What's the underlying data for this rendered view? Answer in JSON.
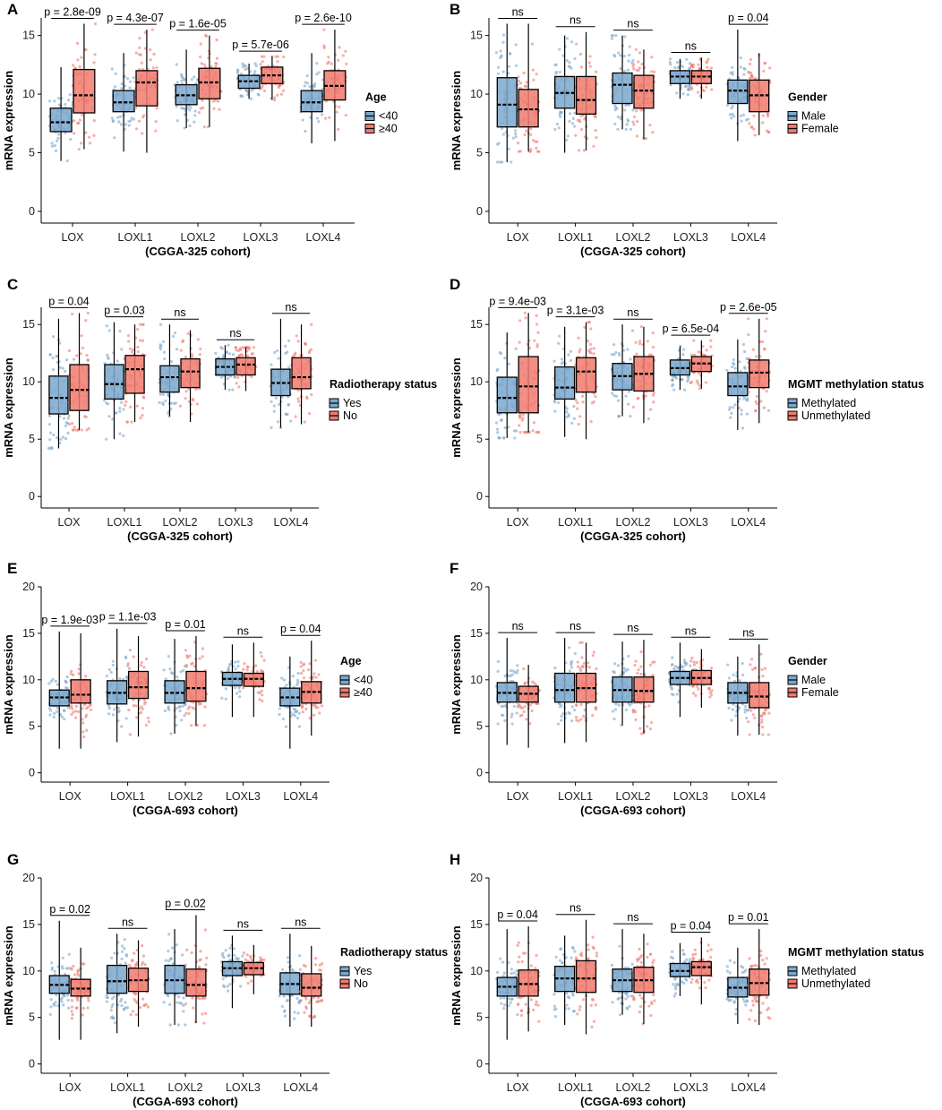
{
  "figure": {
    "colors": {
      "group1": "#7ba7cc",
      "group2": "#f07a6e",
      "median": "#000000"
    },
    "genes": [
      "LOX",
      "LOXL1",
      "LOXL2",
      "LOXL3",
      "LOXL4"
    ],
    "ylabel": "mRNA expression"
  },
  "chart_data": [
    {
      "panel": "A",
      "type": "box",
      "categories": [
        "LOX",
        "LOXL1",
        "LOXL2",
        "LOXL3",
        "LOXL4"
      ],
      "xlabel": "(CGGA-325 cohort)",
      "ylabel": "mRNA expression",
      "ylim": [
        -1,
        16.5
      ],
      "yticks": [
        0,
        5,
        10,
        15
      ],
      "legend": {
        "title": "Age",
        "labels": [
          "<40",
          "≥40"
        ]
      },
      "series": [
        {
          "name": "<40",
          "boxes": [
            [
              6.8,
              7.6,
              8.8
            ],
            [
              8.5,
              9.3,
              10.3
            ],
            [
              9.1,
              9.9,
              10.8
            ],
            [
              10.5,
              11.1,
              11.6
            ],
            [
              8.5,
              9.3,
              10.3
            ]
          ],
          "whiskers": [
            [
              4.3,
              12.3
            ],
            [
              5.1,
              13.5
            ],
            [
              7.1,
              13.8
            ],
            [
              9.6,
              12.6
            ],
            [
              5.8,
              13.5
            ]
          ]
        },
        {
          "name": "≥40",
          "boxes": [
            [
              8.4,
              9.9,
              12.1
            ],
            [
              9.0,
              11.0,
              12.0
            ],
            [
              9.6,
              11.0,
              12.2
            ],
            [
              10.9,
              11.6,
              12.3
            ],
            [
              9.5,
              10.7,
              12.0
            ]
          ],
          "whiskers": [
            [
              5.3,
              16.0
            ],
            [
              5.0,
              15.5
            ],
            [
              7.2,
              15.0
            ],
            [
              9.5,
              13.2
            ],
            [
              6.0,
              15.5
            ]
          ]
        }
      ],
      "annotations": [
        "p = 2.8e-09",
        "p = 4.3e-07",
        "p = 1.6e-05",
        "p = 5.7e-06",
        "p = 2.6e-10"
      ]
    },
    {
      "panel": "B",
      "type": "box",
      "categories": [
        "LOX",
        "LOXL1",
        "LOXL2",
        "LOXL3",
        "LOXL4"
      ],
      "xlabel": "(CGGA-325 cohort)",
      "ylabel": "mRNA expression",
      "ylim": [
        -1,
        16.5
      ],
      "yticks": [
        0,
        5,
        10,
        15
      ],
      "legend": {
        "title": "Gender",
        "labels": [
          "Male",
          "Female"
        ]
      },
      "series": [
        {
          "name": "Male",
          "boxes": [
            [
              7.2,
              9.1,
              11.4
            ],
            [
              8.8,
              10.1,
              11.5
            ],
            [
              9.2,
              10.8,
              11.8
            ],
            [
              10.9,
              11.5,
              12.0
            ],
            [
              9.2,
              10.3,
              11.2
            ]
          ],
          "whiskers": [
            [
              4.2,
              16.0
            ],
            [
              5.0,
              15.0
            ],
            [
              7.0,
              15.0
            ],
            [
              9.6,
              13.0
            ],
            [
              6.0,
              15.5
            ]
          ]
        },
        {
          "name": "Female",
          "boxes": [
            [
              7.2,
              8.7,
              10.4
            ],
            [
              8.3,
              9.5,
              11.5
            ],
            [
              8.8,
              10.3,
              11.6
            ],
            [
              10.9,
              11.5,
              12.0
            ],
            [
              8.5,
              9.9,
              11.2
            ]
          ],
          "whiskers": [
            [
              5.1,
              16.0
            ],
            [
              5.2,
              15.3
            ],
            [
              6.2,
              13.8
            ],
            [
              9.6,
              13.1
            ],
            [
              6.5,
              13.5
            ]
          ]
        }
      ],
      "annotations": [
        "ns",
        "ns",
        "ns",
        "ns",
        "p = 0.04"
      ]
    },
    {
      "panel": "C",
      "type": "box",
      "categories": [
        "LOX",
        "LOXL1",
        "LOXL2",
        "LOXL3",
        "LOXL4"
      ],
      "xlabel": "(CGGA-325 cohort)",
      "ylabel": "mRNA expression",
      "ylim": [
        -1,
        16.5
      ],
      "yticks": [
        0,
        5,
        10,
        15
      ],
      "legend": {
        "title": "Radiotherapy status",
        "labels": [
          "Yes",
          "No"
        ]
      },
      "series": [
        {
          "name": "Yes",
          "boxes": [
            [
              7.2,
              8.6,
              10.5
            ],
            [
              8.5,
              9.8,
              11.5
            ],
            [
              9.1,
              10.4,
              11.4
            ],
            [
              10.6,
              11.3,
              12.0
            ],
            [
              8.8,
              9.9,
              11.1
            ]
          ],
          "whiskers": [
            [
              4.2,
              15.5
            ],
            [
              5.0,
              15.2
            ],
            [
              7.0,
              15.0
            ],
            [
              9.3,
              13.2
            ],
            [
              6.0,
              15.5
            ]
          ]
        },
        {
          "name": "No",
          "boxes": [
            [
              7.5,
              9.3,
              11.5
            ],
            [
              9.0,
              11.1,
              12.3
            ],
            [
              9.5,
              10.9,
              12.0
            ],
            [
              10.6,
              11.5,
              12.1
            ],
            [
              9.4,
              10.4,
              12.1
            ]
          ],
          "whiskers": [
            [
              5.8,
              16.0
            ],
            [
              6.5,
              15.0
            ],
            [
              6.5,
              14.5
            ],
            [
              9.2,
              13.0
            ],
            [
              6.3,
              15.0
            ]
          ]
        }
      ],
      "annotations": [
        "p = 0.04",
        "p = 0.03",
        "ns",
        "ns",
        "ns"
      ]
    },
    {
      "panel": "D",
      "type": "box",
      "categories": [
        "LOX",
        "LOXL1",
        "LOXL2",
        "LOXL3",
        "LOXL4"
      ],
      "xlabel": "(CGGA-325 cohort)",
      "ylabel": "mRNA expression",
      "ylim": [
        -1,
        16.5
      ],
      "yticks": [
        0,
        5,
        10,
        15
      ],
      "legend": {
        "title": "MGMT methylation status",
        "labels": [
          "Methylated",
          "Unmethylated"
        ]
      },
      "series": [
        {
          "name": "Methylated",
          "boxes": [
            [
              7.3,
              8.6,
              10.4
            ],
            [
              8.5,
              9.5,
              11.3
            ],
            [
              9.3,
              10.5,
              11.6
            ],
            [
              10.6,
              11.2,
              11.9
            ],
            [
              8.8,
              9.6,
              10.8
            ]
          ],
          "whiskers": [
            [
              5.1,
              14.3
            ],
            [
              5.2,
              14.8
            ],
            [
              7.0,
              15.0
            ],
            [
              9.3,
              13.1
            ],
            [
              5.8,
              13.7
            ]
          ]
        },
        {
          "name": "Unmethylated",
          "boxes": [
            [
              7.3,
              9.6,
              12.2
            ],
            [
              9.1,
              10.9,
              12.1
            ],
            [
              9.2,
              10.7,
              12.2
            ],
            [
              10.9,
              11.6,
              12.2
            ],
            [
              9.5,
              10.8,
              11.9
            ]
          ],
          "whiskers": [
            [
              5.6,
              16.0
            ],
            [
              5.0,
              15.2
            ],
            [
              6.4,
              14.8
            ],
            [
              9.4,
              13.6
            ],
            [
              6.4,
              15.5
            ]
          ]
        }
      ],
      "annotations": [
        "p = 9.4e-03",
        "p = 3.1e-03",
        "ns",
        "p = 6.5e-04",
        "p = 2.6e-05"
      ]
    },
    {
      "panel": "E",
      "type": "box",
      "categories": [
        "LOX",
        "LOXL1",
        "LOXL2",
        "LOXL3",
        "LOXL4"
      ],
      "xlabel": "(CGGA-693 cohort)",
      "ylabel": "mRNA expression",
      "ylim": [
        -1,
        20
      ],
      "yticks": [
        0,
        5,
        10,
        15,
        20
      ],
      "legend": {
        "title": "Age",
        "labels": [
          "<40",
          "≥40"
        ]
      },
      "series": [
        {
          "name": "<40",
          "boxes": [
            [
              7.2,
              8.1,
              8.9
            ],
            [
              7.4,
              8.6,
              9.9
            ],
            [
              7.5,
              8.6,
              9.9
            ],
            [
              9.4,
              10.1,
              10.8
            ],
            [
              7.2,
              8.1,
              9.1
            ]
          ],
          "whiskers": [
            [
              2.6,
              15.2
            ],
            [
              3.3,
              15.5
            ],
            [
              4.2,
              14.4
            ],
            [
              6.0,
              13.8
            ],
            [
              2.6,
              12.5
            ]
          ]
        },
        {
          "name": "≥40",
          "boxes": [
            [
              7.5,
              8.4,
              10.0
            ],
            [
              8.0,
              9.2,
              10.9
            ],
            [
              7.7,
              9.1,
              10.9
            ],
            [
              9.3,
              10.1,
              10.7
            ],
            [
              7.5,
              8.7,
              9.8
            ]
          ],
          "whiskers": [
            [
              2.6,
              15.0
            ],
            [
              3.9,
              14.7
            ],
            [
              5.1,
              14.7
            ],
            [
              6.0,
              14.0
            ],
            [
              4.0,
              14.2
            ]
          ]
        }
      ],
      "annotations": [
        "p = 1.9e-03",
        "p = 1.1e-03",
        "p = 0.01",
        "ns",
        "p = 0.04"
      ]
    },
    {
      "panel": "F",
      "type": "box",
      "categories": [
        "LOX",
        "LOXL1",
        "LOXL2",
        "LOXL3",
        "LOXL4"
      ],
      "xlabel": "(CGGA-693 cohort)",
      "ylabel": "mRNA expression",
      "ylim": [
        -1,
        20
      ],
      "yticks": [
        0,
        5,
        10,
        15,
        20
      ],
      "legend": {
        "title": "Gender",
        "labels": [
          "Male",
          "Female"
        ]
      },
      "series": [
        {
          "name": "Male",
          "boxes": [
            [
              7.6,
              8.6,
              9.7
            ],
            [
              7.6,
              8.9,
              10.7
            ],
            [
              7.6,
              8.9,
              10.3
            ],
            [
              9.5,
              10.2,
              10.9
            ],
            [
              7.5,
              8.6,
              9.7
            ]
          ],
          "whiskers": [
            [
              3.0,
              14.5
            ],
            [
              3.2,
              14.5
            ],
            [
              5.1,
              14.1
            ],
            [
              6.0,
              14.0
            ],
            [
              4.0,
              12.5
            ]
          ]
        },
        {
          "name": "Female",
          "boxes": [
            [
              7.6,
              8.5,
              9.3
            ],
            [
              7.6,
              9.1,
              10.7
            ],
            [
              7.6,
              8.8,
              10.3
            ],
            [
              9.5,
              10.2,
              11.0
            ],
            [
              7.0,
              8.2,
              9.7
            ]
          ],
          "whiskers": [
            [
              2.7,
              11.6
            ],
            [
              3.3,
              14.0
            ],
            [
              4.2,
              14.3
            ],
            [
              7.0,
              13.3
            ],
            [
              4.1,
              13.8
            ]
          ]
        }
      ],
      "annotations": [
        "ns",
        "ns",
        "ns",
        "ns",
        "ns"
      ]
    },
    {
      "panel": "G",
      "type": "box",
      "categories": [
        "LOX",
        "LOXL1",
        "LOXL2",
        "LOXL3",
        "LOXL4"
      ],
      "xlabel": "(CGGA-693 cohort)",
      "ylabel": "mRNA expression",
      "ylim": [
        -1,
        20
      ],
      "yticks": [
        0,
        5,
        10,
        15,
        20
      ],
      "legend": {
        "title": "Radiotherapy status",
        "labels": [
          "Yes",
          "No"
        ]
      },
      "series": [
        {
          "name": "Yes",
          "boxes": [
            [
              7.6,
              8.5,
              9.5
            ],
            [
              7.6,
              8.9,
              10.6
            ],
            [
              7.6,
              9.0,
              10.6
            ],
            [
              9.5,
              10.3,
              11.0
            ],
            [
              7.5,
              8.6,
              9.8
            ]
          ],
          "whiskers": [
            [
              2.6,
              15.4
            ],
            [
              3.3,
              14.0
            ],
            [
              4.2,
              14.5
            ],
            [
              6.0,
              13.8
            ],
            [
              4.0,
              14.0
            ]
          ]
        },
        {
          "name": "No",
          "boxes": [
            [
              7.3,
              8.1,
              9.1
            ],
            [
              7.8,
              9.0,
              10.3
            ],
            [
              7.3,
              8.5,
              10.2
            ],
            [
              9.6,
              10.3,
              10.9
            ],
            [
              7.3,
              8.2,
              9.7
            ]
          ],
          "whiskers": [
            [
              2.6,
              12.5
            ],
            [
              4.0,
              13.3
            ],
            [
              4.4,
              16.0
            ],
            [
              7.5,
              12.8
            ],
            [
              4.0,
              12.7
            ]
          ]
        }
      ],
      "annotations": [
        "p = 0.02",
        "ns",
        "p = 0.02",
        "ns",
        "ns"
      ]
    },
    {
      "panel": "H",
      "type": "box",
      "categories": [
        "LOX",
        "LOXL1",
        "LOXL2",
        "LOXL3",
        "LOXL4"
      ],
      "xlabel": "(CGGA-693 cohort)",
      "ylabel": "mRNA expression",
      "ylim": [
        -1,
        20
      ],
      "yticks": [
        0,
        5,
        10,
        15,
        20
      ],
      "legend": {
        "title": "MGMT methylation status",
        "labels": [
          "Methylated",
          "Unmethylated"
        ]
      },
      "series": [
        {
          "name": "Methylated",
          "boxes": [
            [
              7.3,
              8.3,
              9.3
            ],
            [
              7.8,
              9.2,
              10.5
            ],
            [
              7.8,
              9.0,
              10.2
            ],
            [
              9.4,
              10.0,
              10.8
            ],
            [
              7.2,
              8.2,
              9.3
            ]
          ],
          "whiskers": [
            [
              2.6,
              14.5
            ],
            [
              4.2,
              13.8
            ],
            [
              5.3,
              14.5
            ],
            [
              7.3,
              13.0
            ],
            [
              4.3,
              12.5
            ]
          ]
        },
        {
          "name": "Unmethylated",
          "boxes": [
            [
              7.3,
              8.6,
              10.1
            ],
            [
              7.7,
              9.2,
              11.1
            ],
            [
              7.7,
              9.0,
              10.4
            ],
            [
              9.5,
              10.4,
              11.0
            ],
            [
              7.4,
              8.7,
              10.2
            ]
          ],
          "whiskers": [
            [
              3.5,
              14.8
            ],
            [
              3.2,
              15.5
            ],
            [
              4.3,
              14.0
            ],
            [
              6.4,
              13.6
            ],
            [
              4.2,
              14.5
            ]
          ]
        }
      ],
      "annotations": [
        "p = 0.04",
        "ns",
        "ns",
        "p = 0.04",
        "p = 0.01"
      ]
    }
  ]
}
